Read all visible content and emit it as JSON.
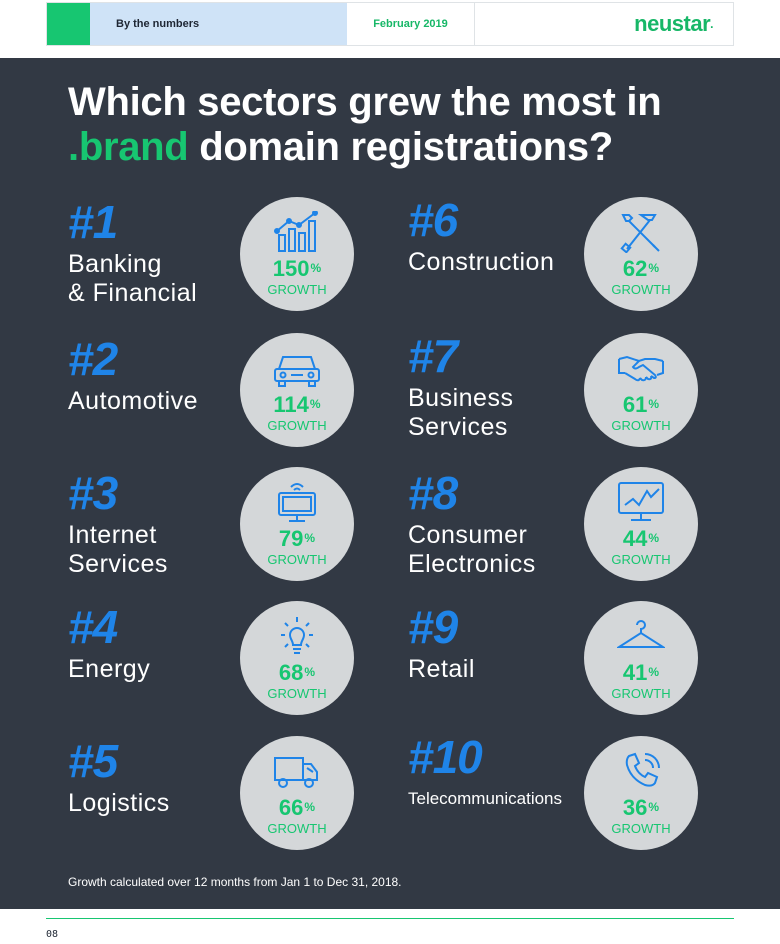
{
  "header": {
    "section": "By the numbers",
    "date": "February 2019",
    "logo": "neustar",
    "logo_mark": "."
  },
  "title": {
    "line1": "Which sectors grew the most in",
    "accent": ".brand",
    "line2_rest": " domain registrations?"
  },
  "sectors": [
    {
      "rank": "#1",
      "name": "Banking\n& Financial",
      "growth_value": "150",
      "growth_unit": "%",
      "growth_label": "GROWTH",
      "icon": "bar-chart-icon"
    },
    {
      "rank": "#2",
      "name": "Automotive",
      "growth_value": "114",
      "growth_unit": "%",
      "growth_label": "GROWTH",
      "icon": "car-icon"
    },
    {
      "rank": "#3",
      "name": "Internet\nServices",
      "growth_value": "79",
      "growth_unit": "%",
      "growth_label": "GROWTH",
      "icon": "monitor-wifi-icon"
    },
    {
      "rank": "#4",
      "name": "Energy",
      "growth_value": "68",
      "growth_unit": "%",
      "growth_label": "GROWTH",
      "icon": "lightbulb-icon"
    },
    {
      "rank": "#5",
      "name": "Logistics",
      "growth_value": "66",
      "growth_unit": "%",
      "growth_label": "GROWTH",
      "icon": "truck-icon"
    },
    {
      "rank": "#6",
      "name": "Construction",
      "growth_value": "62",
      "growth_unit": "%",
      "growth_label": "GROWTH",
      "icon": "tools-icon"
    },
    {
      "rank": "#7",
      "name": "Business\nServices",
      "growth_value": "61",
      "growth_unit": "%",
      "growth_label": "GROWTH",
      "icon": "handshake-icon"
    },
    {
      "rank": "#8",
      "name": "Consumer\nElectronics",
      "growth_value": "44",
      "growth_unit": "%",
      "growth_label": "GROWTH",
      "icon": "line-chart-monitor-icon"
    },
    {
      "rank": "#9",
      "name": "Retail",
      "growth_value": "41",
      "growth_unit": "%",
      "growth_label": "GROWTH",
      "icon": "hanger-icon"
    },
    {
      "rank": "#10",
      "name": "Telecommunications",
      "growth_value": "36",
      "growth_unit": "%",
      "growth_label": "GROWTH",
      "icon": "phone-icon"
    }
  ],
  "footnote": "Growth calculated over 12 months from Jan 1 to Dec 31, 2018.",
  "page_number": "08",
  "colors": {
    "brand_green": "#17c671",
    "rank_blue": "#1f84e8",
    "panel": "#323944",
    "circle": "#d4d7d9",
    "header_blue": "#cfe3f7"
  }
}
